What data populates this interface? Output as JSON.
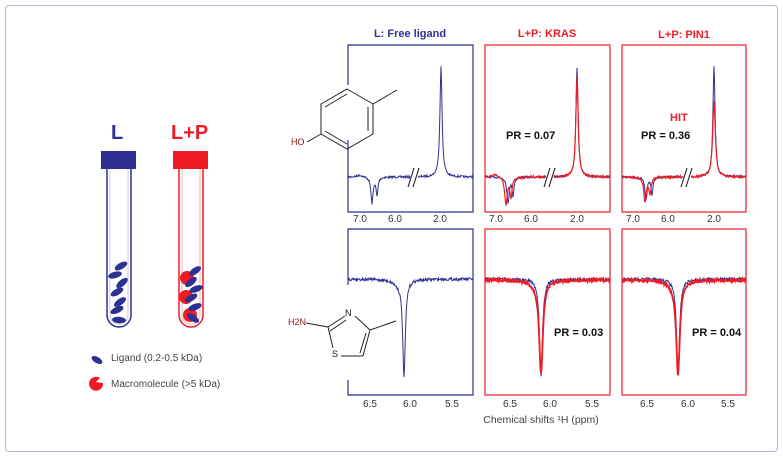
{
  "colors": {
    "ligand": "#2e3192",
    "protein": "#ed1c24",
    "frame": "#b9b3d9"
  },
  "tubes": {
    "left_label": "L",
    "right_label": "L+P"
  },
  "legend": {
    "ligand": "Ligand (0.2-0.5 kDa)",
    "macromolecule": "Macromolecule (>5 kDa)"
  },
  "panels": {
    "free": {
      "title": "L: Free ligand"
    },
    "kras": {
      "title": "L+P: KRAS",
      "pr_top": "PR = 0.07",
      "pr_bottom": "PR = 0.03"
    },
    "pin1": {
      "title": "L+P: PIN1",
      "hit": "HIT",
      "pr_top": "PR = 0.36",
      "pr_bottom": "PR = 0.04"
    }
  },
  "ticks_top": [
    "7.0",
    "6.0",
    "2.0"
  ],
  "ticks_bottom": [
    "6.5",
    "6.0",
    "5.5"
  ],
  "structures": {
    "phenol_label": "HO",
    "thiazole_amine": "H2N",
    "thiazole_n": "N",
    "thiazole_s": "S"
  },
  "xlabel": "Chemical shifts ¹H (ppm)"
}
